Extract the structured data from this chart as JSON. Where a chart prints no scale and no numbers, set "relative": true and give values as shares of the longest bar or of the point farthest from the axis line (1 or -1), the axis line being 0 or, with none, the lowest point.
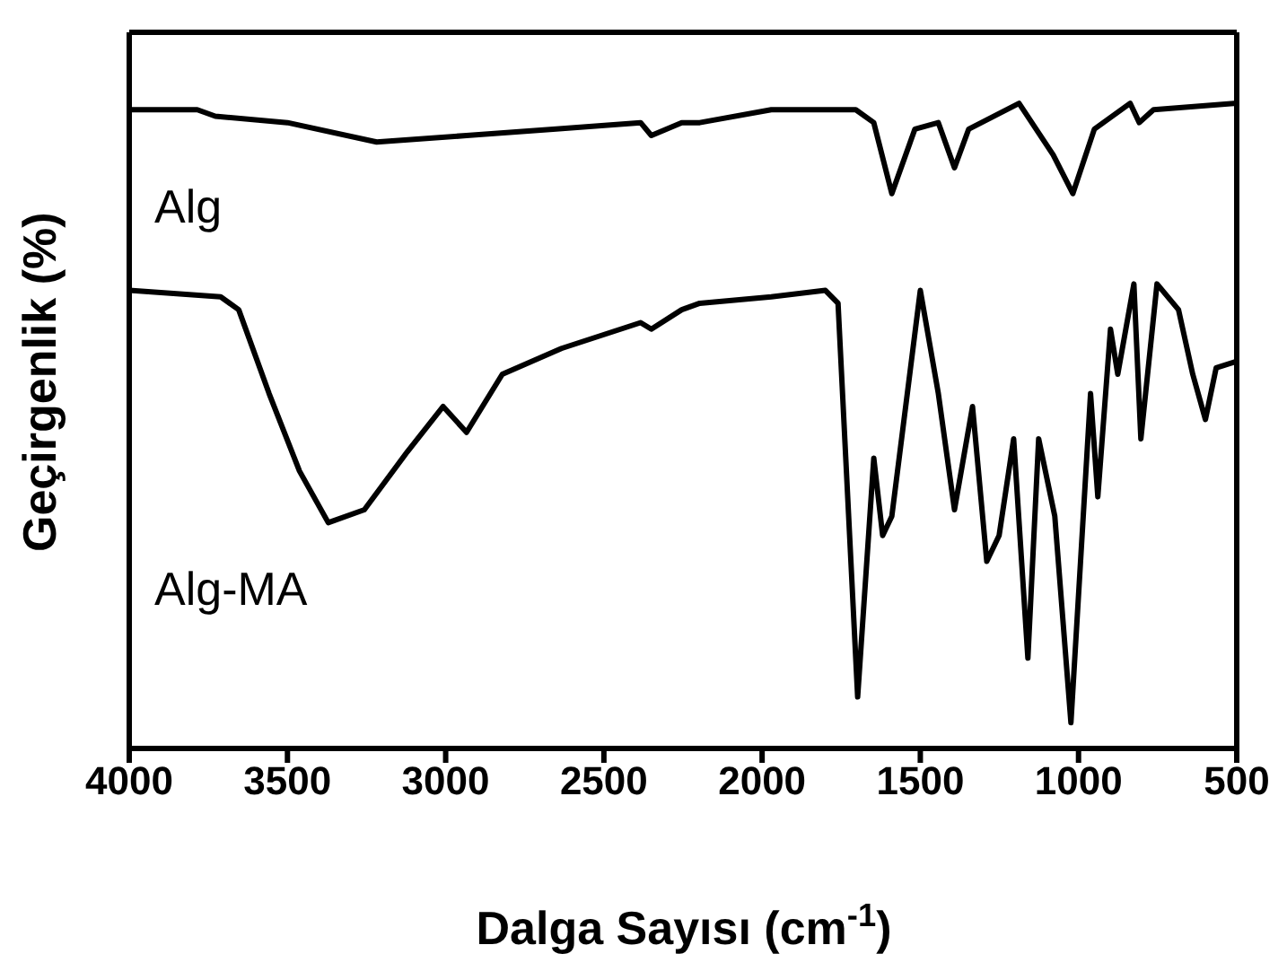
{
  "chart_data": {
    "type": "line",
    "xlabel": "Dalga Sayısı (cm$^{-1}$)",
    "ylabel": "Geçirgenlik (%)",
    "relative": true,
    "xlim": [
      4000,
      500
    ],
    "xticks": [
      4000,
      3500,
      3000,
      2500,
      2000,
      1500,
      1000,
      500
    ],
    "legend": false,
    "series": [
      {
        "name": "Alg",
        "color": "#000000",
        "x": [
          4000,
          3785,
          3728,
          3500,
          3218,
          2934,
          2651,
          2384,
          2350,
          2254,
          2197,
          1971,
          1704,
          1647,
          1590,
          1517,
          1443,
          1392,
          1347,
          1188,
          1080,
          1018,
          950,
          837,
          808,
          763,
          500
        ],
        "values": [
          0.99,
          0.99,
          0.98,
          0.97,
          0.94,
          0.95,
          0.96,
          0.97,
          0.95,
          0.97,
          0.97,
          0.99,
          0.99,
          0.97,
          0.86,
          0.96,
          0.97,
          0.9,
          0.96,
          1.0,
          0.92,
          0.86,
          0.96,
          1.0,
          0.97,
          0.99,
          1.0
        ]
      },
      {
        "name": "Alg-MA",
        "color": "#000000",
        "x": [
          4000,
          3711,
          3654,
          3558,
          3462,
          3371,
          3257,
          3121,
          3008,
          2934,
          2821,
          2634,
          2384,
          2350,
          2254,
          2197,
          1971,
          1800,
          1760,
          1698,
          1647,
          1619,
          1590,
          1500,
          1443,
          1392,
          1335,
          1290,
          1251,
          1205,
          1160,
          1126,
          1075,
          1024,
          962,
          939,
          899,
          876,
          825,
          803,
          752,
          684,
          639,
          599,
          565,
          500
        ],
        "values": [
          0.71,
          0.7,
          0.68,
          0.55,
          0.43,
          0.35,
          0.37,
          0.46,
          0.53,
          0.49,
          0.58,
          0.62,
          0.66,
          0.65,
          0.68,
          0.69,
          0.7,
          0.71,
          0.69,
          0.08,
          0.45,
          0.33,
          0.36,
          0.71,
          0.55,
          0.37,
          0.53,
          0.29,
          0.33,
          0.48,
          0.14,
          0.48,
          0.36,
          0.04,
          0.55,
          0.39,
          0.65,
          0.58,
          0.72,
          0.48,
          0.72,
          0.68,
          0.58,
          0.51,
          0.59,
          0.6
        ]
      }
    ]
  }
}
